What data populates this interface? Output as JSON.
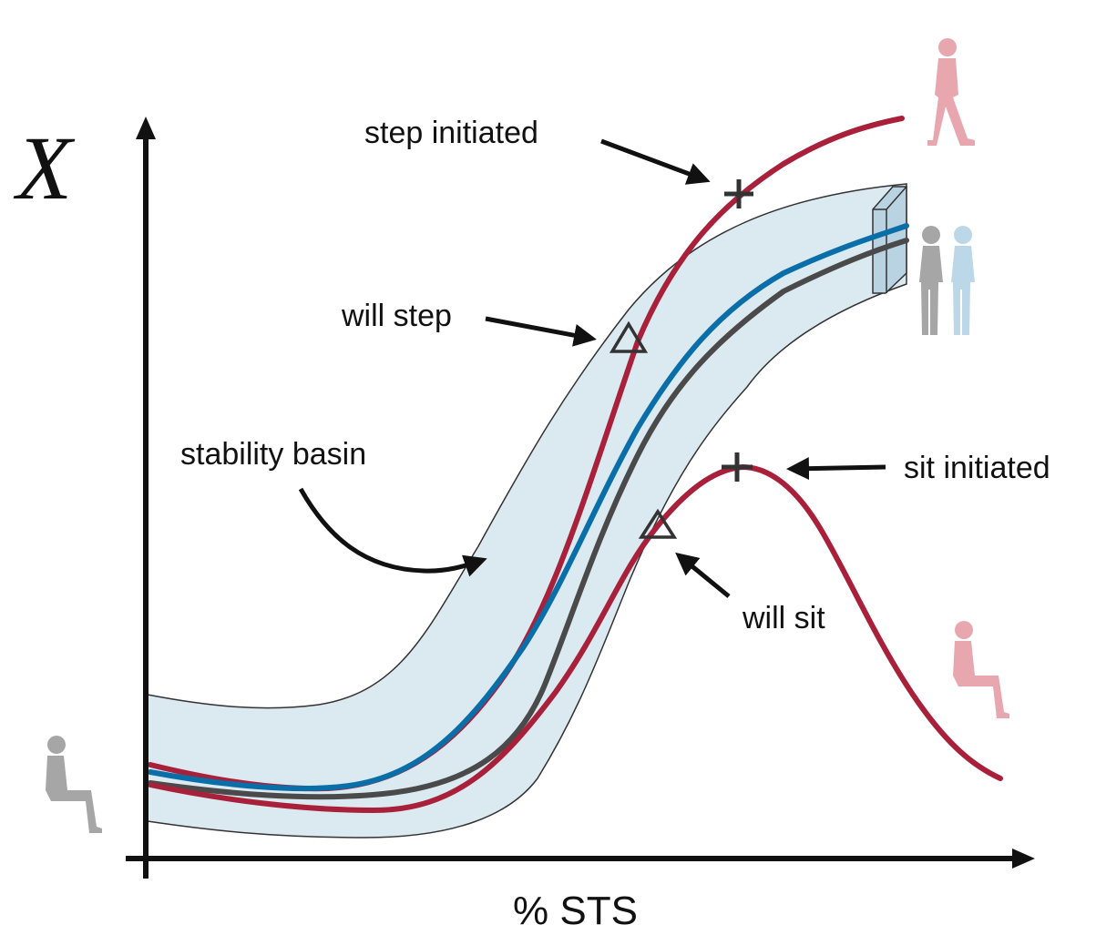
{
  "axes": {
    "y_label": "X",
    "x_label": "% STS"
  },
  "annotations": {
    "step_initiated": "step initiated",
    "will_step": "will step",
    "stability_basin": "stability basin",
    "sit_initiated": "sit initiated",
    "will_sit": "will sit"
  },
  "colors": {
    "step_sit_trajectories": "#a8203a",
    "nominal_trajectory": "#0a6fa8",
    "mean_trajectory": "#4a4a4a",
    "basin_fill": "#dbe9f1",
    "basin_outline": "#333333",
    "figure_gray": "#a6a6a6",
    "figure_red": "#e8a7ae",
    "figure_blue": "#bcd7e8"
  },
  "icons": {
    "seated_start": "seated-person-icon",
    "walking_end": "walking-person-icon",
    "standing_gray": "standing-person-icon",
    "standing_blue": "standing-person-icon",
    "seated_end": "seated-person-icon",
    "step_initiated_marker": "plus-marker-icon",
    "sit_initiated_marker": "plus-marker-icon",
    "will_step_marker": "triangle-marker-icon",
    "will_sit_marker": "triangle-marker-icon"
  }
}
